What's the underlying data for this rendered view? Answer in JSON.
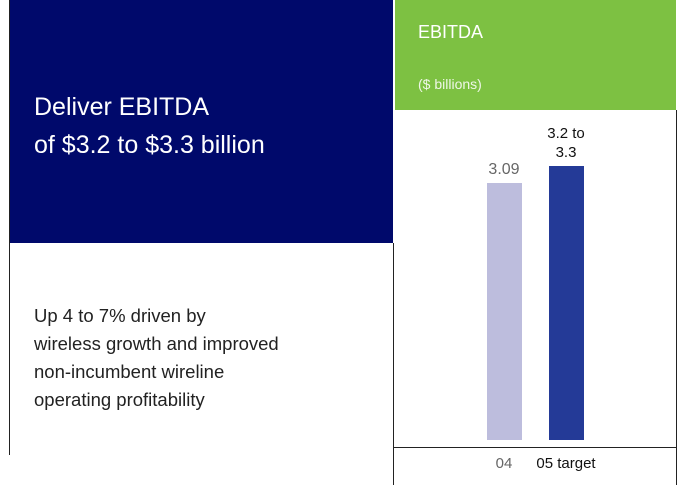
{
  "headline": [
    "Deliver EBITDA",
    "of $3.2 to $3.3 billion"
  ],
  "description": [
    "Up 4 to 7% driven by",
    "wireless growth and improved",
    "non-incumbent wireline",
    "operating profitability"
  ],
  "chart_data": {
    "type": "bar",
    "title": "EBITDA",
    "subtitle": "($ billions)",
    "categories": [
      "04",
      "05 target"
    ],
    "values": [
      3.09,
      3.3
    ],
    "value_labels": [
      "3.09",
      "3.2 to 3.3"
    ],
    "colors": [
      "#bdbddd",
      "#243a97"
    ]
  }
}
